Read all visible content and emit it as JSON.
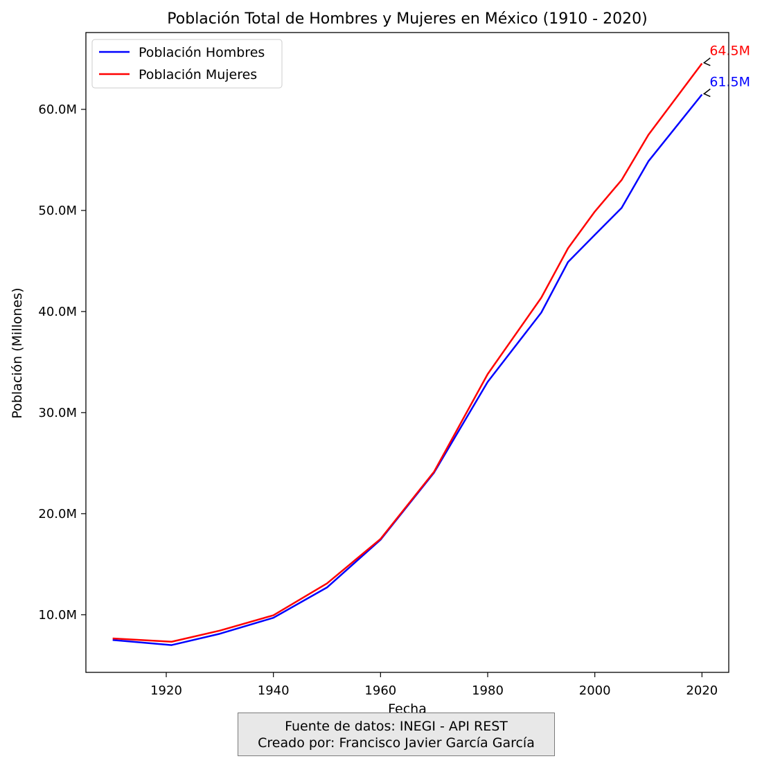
{
  "chart_data": {
    "type": "line",
    "title": "Población Total de Hombres y Mujeres en México (1910 - 2020)",
    "xlabel": "Fecha",
    "ylabel": "Población (Millones)",
    "xlim": [
      1905,
      2025
    ],
    "ylim": [
      4.3,
      67.6
    ],
    "x_ticks": [
      1920,
      1940,
      1960,
      1980,
      2000,
      2020
    ],
    "y_ticks": [
      10,
      20,
      30,
      40,
      50,
      60
    ],
    "y_tick_labels": [
      "10.0M",
      "20.0M",
      "30.0M",
      "40.0M",
      "50.0M",
      "60.0M"
    ],
    "x": [
      1910,
      1921,
      1930,
      1940,
      1950,
      1960,
      1970,
      1980,
      1990,
      1995,
      2000,
      2005,
      2010,
      2020
    ],
    "series": [
      {
        "name": "Población Hombres",
        "color": "#0000ff",
        "values": [
          7.5,
          7.0,
          8.12,
          9.7,
          12.7,
          17.42,
          24.07,
          33.04,
          39.89,
          44.9,
          47.59,
          50.25,
          54.86,
          61.47
        ],
        "end_label": "61.5M"
      },
      {
        "name": "Población Mujeres",
        "color": "#ff0000",
        "values": [
          7.66,
          7.33,
          8.43,
          9.95,
          13.1,
          17.5,
          24.16,
          33.81,
          41.36,
          46.26,
          49.89,
          53.01,
          57.48,
          64.54
        ],
        "end_label": "64.5M"
      }
    ],
    "legend_position": "top-left",
    "grid": false
  },
  "footer": {
    "line1": "Fuente de datos: INEGI - API REST",
    "line2": "Creado por: Francisco Javier García García"
  }
}
